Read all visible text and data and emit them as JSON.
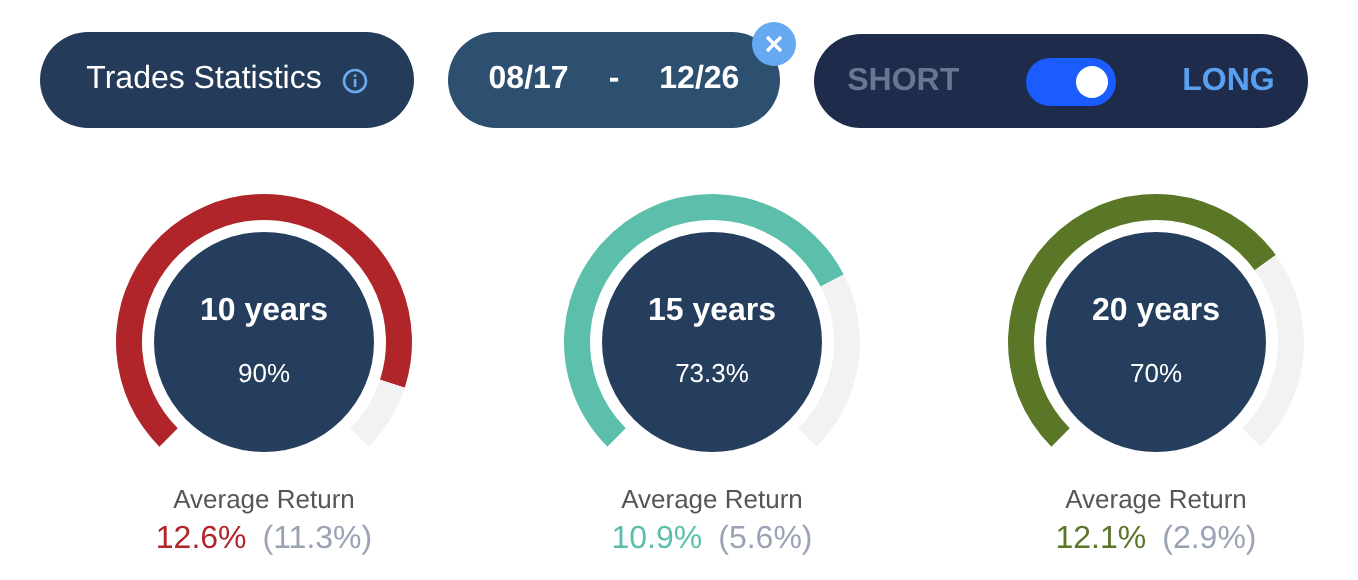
{
  "chart_data": [
    {
      "type": "other",
      "title": "Trades Statistics",
      "annotations": [
        "08/17",
        "-",
        "12/26",
        "SHORT",
        "LONG"
      ]
    },
    {
      "type": "donut",
      "title": "10 years",
      "categories": [
        null,
        null
      ],
      "values": [
        90,
        10
      ],
      "colors": [
        "#b0252a",
        "#f2f2f2"
      ],
      "annotations": [
        "90%",
        "Average Return",
        "12.6%",
        "(11.3%)"
      ]
    },
    {
      "type": "donut",
      "title": "15 years",
      "categories": [
        null,
        null
      ],
      "values": [
        73.3,
        26.7
      ],
      "colors": [
        "#5bbfab",
        "#f2f2f2"
      ],
      "annotations": [
        "73.3%",
        "Average Return",
        "10.9%",
        "(5.6%)"
      ]
    },
    {
      "type": "donut",
      "title": "20 years",
      "categories": [
        null,
        null
      ],
      "values": [
        70,
        30
      ],
      "colors": [
        "#5a7627",
        "#f2f2f2"
      ],
      "annotations": [
        "70%",
        "Average Return",
        "12.1%",
        "(2.9%)"
      ]
    }
  ]
}
